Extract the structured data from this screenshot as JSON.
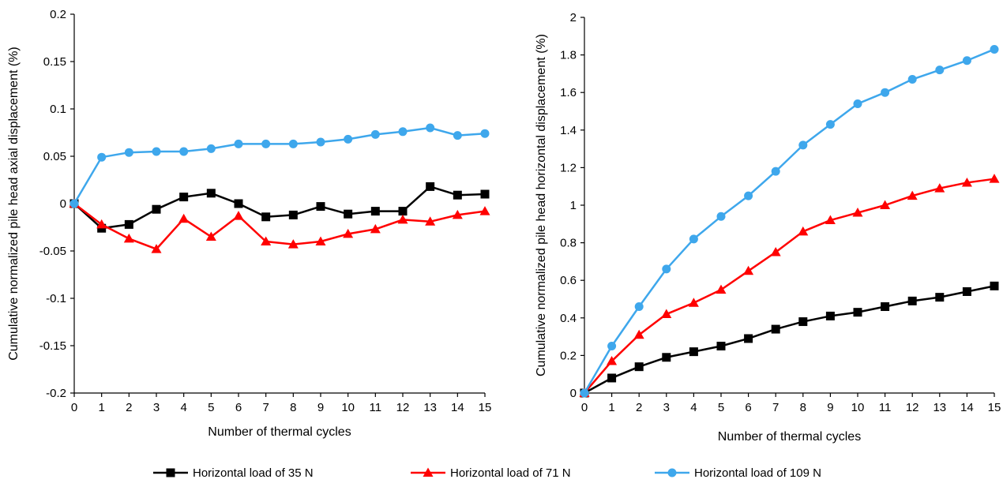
{
  "chart_data": [
    {
      "type": "line",
      "xlabel": "Number of thermal cycles",
      "ylabel": "Cumulative normalized pile head axial displacement (%)",
      "xlim": [
        0,
        15
      ],
      "ylim": [
        -0.2,
        0.2
      ],
      "xticks": [
        "0",
        "1",
        "2",
        "3",
        "4",
        "5",
        "6",
        "7",
        "8",
        "9",
        "10",
        "11",
        "12",
        "13",
        "14",
        "15"
      ],
      "yticks": [
        "-0.2",
        "-0.15",
        "-0.1",
        "-0.05",
        "0",
        "0.05",
        "0.1",
        "0.15",
        "0.2"
      ],
      "ytick_values": [
        -0.2,
        -0.15,
        -0.1,
        -0.05,
        0,
        0.05,
        0.1,
        0.15,
        0.2
      ],
      "x": [
        0,
        1,
        2,
        3,
        4,
        5,
        6,
        7,
        8,
        9,
        10,
        11,
        12,
        13,
        14,
        15
      ],
      "series": [
        {
          "name": "Horizontal load of 35 N",
          "color": "#000000",
          "marker": "square",
          "values": [
            0,
            -0.026,
            -0.022,
            -0.006,
            0.007,
            0.011,
            0,
            -0.014,
            -0.012,
            -0.003,
            -0.011,
            -0.008,
            -0.008,
            0.018,
            0.009,
            0.01
          ]
        },
        {
          "name": "Horizontal load of 71 N",
          "color": "#ff0000",
          "marker": "triangle",
          "values": [
            0,
            -0.022,
            -0.037,
            -0.048,
            -0.016,
            -0.035,
            -0.013,
            -0.04,
            -0.043,
            -0.04,
            -0.032,
            -0.027,
            -0.017,
            -0.019,
            -0.012,
            -0.008
          ]
        },
        {
          "name": "Horizontal load of 109 N",
          "color": "#3ea7ec",
          "marker": "circle",
          "values": [
            0,
            0.049,
            0.054,
            0.055,
            0.055,
            0.058,
            0.063,
            0.063,
            0.063,
            0.065,
            0.068,
            0.073,
            0.076,
            0.08,
            0.072,
            0.074
          ]
        }
      ],
      "grid": false
    },
    {
      "type": "line",
      "xlabel": "Number of thermal cycles",
      "ylabel": "Cumulative normalized pile head horizontal displacement (%)",
      "xlim": [
        0,
        15
      ],
      "ylim": [
        0,
        2
      ],
      "xticks": [
        "0",
        "1",
        "2",
        "3",
        "4",
        "5",
        "6",
        "7",
        "8",
        "9",
        "10",
        "11",
        "12",
        "13",
        "14",
        "15"
      ],
      "yticks": [
        "0",
        "0.2",
        "0.4",
        "0.6",
        "0.8",
        "1",
        "1.2",
        "1.4",
        "1.6",
        "1.8",
        "2"
      ],
      "ytick_values": [
        0,
        0.2,
        0.4,
        0.6,
        0.8,
        1,
        1.2,
        1.4,
        1.6,
        1.8,
        2
      ],
      "x": [
        0,
        1,
        2,
        3,
        4,
        5,
        6,
        7,
        8,
        9,
        10,
        11,
        12,
        13,
        14,
        15
      ],
      "series": [
        {
          "name": "Horizontal load of 35 N",
          "color": "#000000",
          "marker": "square",
          "values": [
            0,
            0.08,
            0.14,
            0.19,
            0.22,
            0.25,
            0.29,
            0.34,
            0.38,
            0.41,
            0.43,
            0.46,
            0.49,
            0.51,
            0.54,
            0.57
          ]
        },
        {
          "name": "Horizontal load of 71 N",
          "color": "#ff0000",
          "marker": "triangle",
          "values": [
            0,
            0.17,
            0.31,
            0.42,
            0.48,
            0.55,
            0.65,
            0.75,
            0.86,
            0.92,
            0.96,
            1.0,
            1.05,
            1.09,
            1.12,
            1.14
          ]
        },
        {
          "name": "Horizontal load of 109 N",
          "color": "#3ea7ec",
          "marker": "circle",
          "values": [
            0,
            0.25,
            0.46,
            0.66,
            0.82,
            0.94,
            1.05,
            1.18,
            1.32,
            1.43,
            1.54,
            1.6,
            1.67,
            1.72,
            1.77,
            1.83
          ]
        }
      ],
      "grid": false
    }
  ],
  "legend": {
    "placement": "bottom",
    "items": [
      {
        "label": "Horizontal load of 35 N",
        "color": "#000000",
        "marker": "square"
      },
      {
        "label": "Horizontal load of 71 N",
        "color": "#ff0000",
        "marker": "triangle"
      },
      {
        "label": "Horizontal load of 109 N",
        "color": "#3ea7ec",
        "marker": "circle"
      }
    ]
  }
}
